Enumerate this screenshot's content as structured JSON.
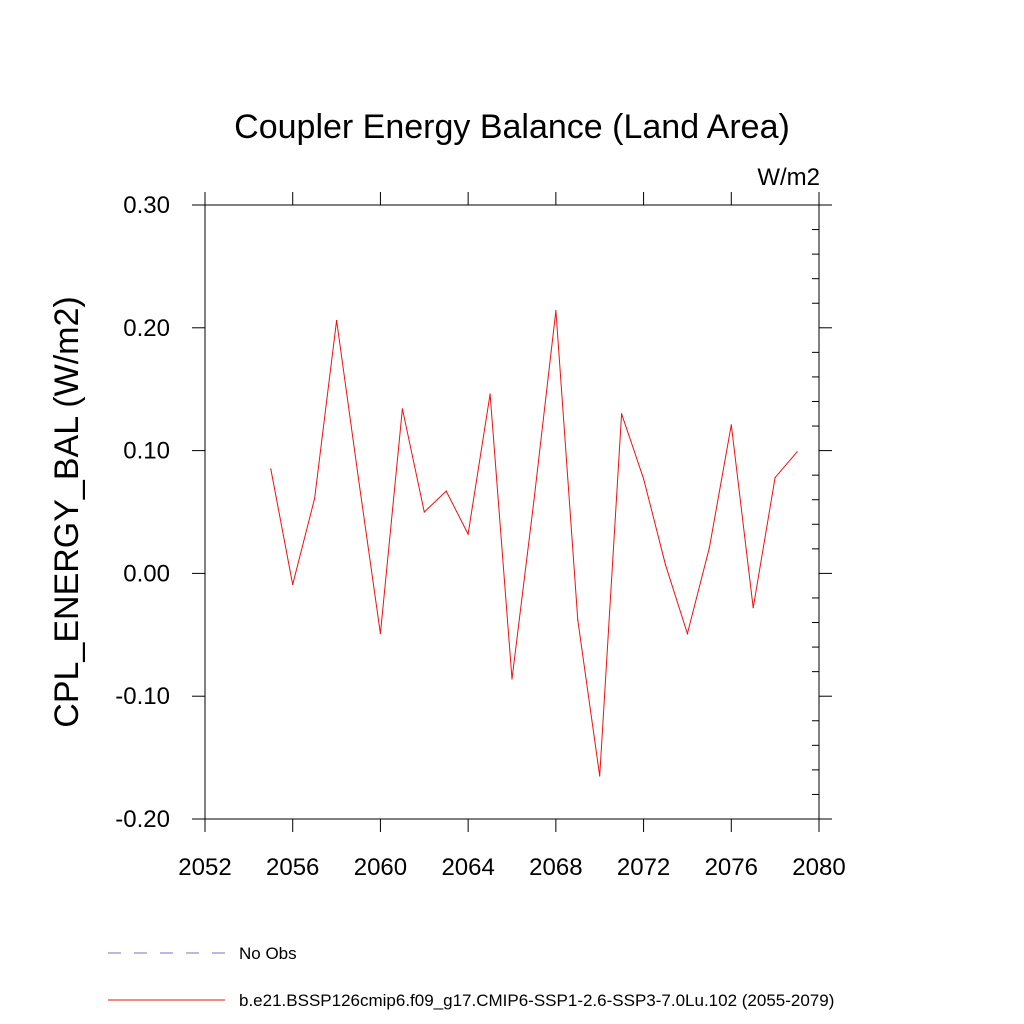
{
  "chart_data": {
    "type": "line",
    "title": "Coupler Energy Balance (Land Area)",
    "units_label": "W/m2",
    "ylabel": "CPL_ENERGY_BAL  (W/m2)",
    "xlabel": "",
    "xlim": [
      2052,
      2080
    ],
    "ylim": [
      -0.2,
      0.3
    ],
    "x_ticks": [
      2052,
      2056,
      2060,
      2064,
      2068,
      2072,
      2076,
      2080
    ],
    "x_tick_labels": [
      "2052",
      "2056",
      "2060",
      "2064",
      "2068",
      "2072",
      "2076",
      "2080"
    ],
    "y_ticks": [
      -0.2,
      -0.1,
      0.0,
      0.1,
      0.2,
      0.3
    ],
    "y_tick_labels": [
      "-0.20",
      "-0.10",
      "0.00",
      "0.10",
      "0.20",
      "0.30"
    ],
    "grid": false,
    "legend_position": "bottom-left",
    "legend": [
      {
        "label": "No Obs",
        "color": "#7b6fc7",
        "dash": "dashed"
      },
      {
        "label": "b.e21.BSSP126cmip6.f09_g17.CMIP6-SSP1-2.6-SSP3-7.0Lu.102 (2055-2079)",
        "color": "#ee1111",
        "dash": "solid"
      }
    ],
    "series": [
      {
        "name": "b.e21.BSSP126cmip6.f09_g17.CMIP6-SSP1-2.6-SSP3-7.0Lu.102 (2055-2079)",
        "color": "#ee1111",
        "x": [
          2055,
          2056,
          2057,
          2058,
          2059,
          2060,
          2061,
          2062,
          2063,
          2064,
          2065,
          2066,
          2067,
          2068,
          2069,
          2070,
          2071,
          2072,
          2073,
          2074,
          2075,
          2076,
          2077,
          2078,
          2079
        ],
        "y": [
          0.085,
          -0.009,
          0.061,
          0.206,
          0.077,
          -0.049,
          0.134,
          0.05,
          0.067,
          0.032,
          0.146,
          -0.086,
          0.059,
          0.214,
          -0.038,
          -0.165,
          0.13,
          0.077,
          0.007,
          -0.049,
          0.021,
          0.121,
          -0.028,
          0.078,
          0.099
        ]
      }
    ]
  }
}
